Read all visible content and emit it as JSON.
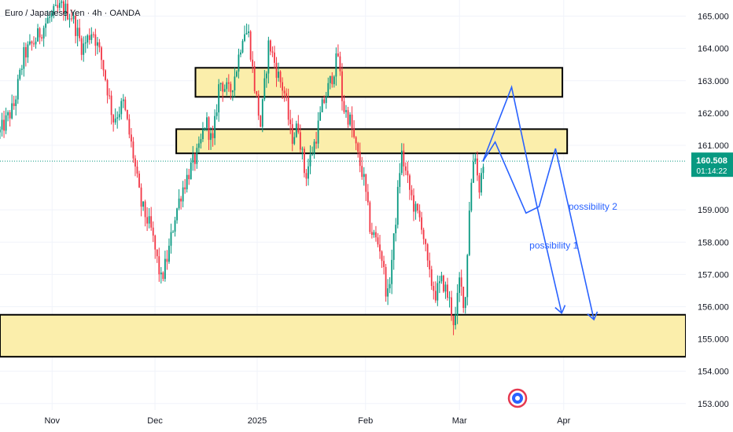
{
  "chart_data": {
    "type": "candlestick",
    "title": "Euro / Japanese Yen · 4h · OANDA",
    "colors": {
      "up": "#089981",
      "down": "#f23645",
      "zone_fill": "#fbeeab",
      "zone_border": "#000000",
      "projection": "#2962ff",
      "price_badge": "#089981",
      "grid": "#f0f3fa",
      "axis_text": "#131722",
      "current_line": "#089981"
    },
    "yaxis": {
      "range": [
        152.8,
        165.5
      ],
      "ticks": [
        "165.000",
        "164.000",
        "163.000",
        "162.000",
        "161.000",
        "159.000",
        "158.000",
        "157.000",
        "156.000",
        "155.000",
        "154.000",
        "153.000"
      ],
      "tick_values": [
        165,
        164,
        163,
        162,
        161,
        159,
        158,
        157,
        156,
        155,
        154,
        153
      ]
    },
    "xaxis": {
      "range": [
        0,
        100
      ],
      "labels": [
        {
          "text": "Nov",
          "x": 7.6
        },
        {
          "text": "Dec",
          "x": 22.6
        },
        {
          "text": "2025",
          "x": 37.5
        },
        {
          "text": "Feb",
          "x": 53.3
        },
        {
          "text": "Mar",
          "x": 67.0
        },
        {
          "text": "Apr",
          "x": 82.2
        }
      ]
    },
    "current_price": {
      "value": 160.508,
      "label": "160.508",
      "countdown": "01:14:22"
    },
    "zones": [
      {
        "x_start": 28.5,
        "x_end": 82.0,
        "y_low": 162.5,
        "y_high": 163.4
      },
      {
        "x_start": 25.7,
        "x_end": 82.7,
        "y_low": 160.75,
        "y_high": 161.5
      },
      {
        "x_start": 0,
        "x_end": 100,
        "y_low": 154.45,
        "y_high": 155.75
      }
    ],
    "path_anchors": [
      {
        "x": 0,
        "y": 161.4
      },
      {
        "x": 2,
        "y": 162.2
      },
      {
        "x": 3.5,
        "y": 163.8
      },
      {
        "x": 5,
        "y": 164.2
      },
      {
        "x": 7,
        "y": 164.9
      },
      {
        "x": 9,
        "y": 165.3
      },
      {
        "x": 10.5,
        "y": 165.0
      },
      {
        "x": 12,
        "y": 164.0
      },
      {
        "x": 13.5,
        "y": 164.6
      },
      {
        "x": 15,
        "y": 163.5
      },
      {
        "x": 16.5,
        "y": 161.8
      },
      {
        "x": 18,
        "y": 162.3
      },
      {
        "x": 19.5,
        "y": 160.6
      },
      {
        "x": 20.5,
        "y": 159.2
      },
      {
        "x": 22,
        "y": 158.4
      },
      {
        "x": 23.5,
        "y": 156.8
      },
      {
        "x": 24.5,
        "y": 157.6
      },
      {
        "x": 25.5,
        "y": 158.8
      },
      {
        "x": 26.5,
        "y": 159.6
      },
      {
        "x": 28,
        "y": 160.4
      },
      {
        "x": 29,
        "y": 160.8
      },
      {
        "x": 30,
        "y": 161.8
      },
      {
        "x": 31,
        "y": 161.0
      },
      {
        "x": 32,
        "y": 163.0
      },
      {
        "x": 33.5,
        "y": 162.6
      },
      {
        "x": 34.5,
        "y": 163.4
      },
      {
        "x": 35.5,
        "y": 164.6
      },
      {
        "x": 36.3,
        "y": 164.4
      },
      {
        "x": 37,
        "y": 163.0
      },
      {
        "x": 38,
        "y": 161.6
      },
      {
        "x": 39.2,
        "y": 164.2
      },
      {
        "x": 40.5,
        "y": 163.2
      },
      {
        "x": 41.5,
        "y": 162.6
      },
      {
        "x": 42.5,
        "y": 161.2
      },
      {
        "x": 43.5,
        "y": 161.6
      },
      {
        "x": 44.5,
        "y": 160.0
      },
      {
        "x": 46,
        "y": 161.2
      },
      {
        "x": 47,
        "y": 162.2
      },
      {
        "x": 48.5,
        "y": 163.2
      },
      {
        "x": 49.3,
        "y": 163.8
      },
      {
        "x": 50,
        "y": 162.2
      },
      {
        "x": 51,
        "y": 161.8
      },
      {
        "x": 52,
        "y": 160.8
      },
      {
        "x": 53,
        "y": 160.0
      },
      {
        "x": 54,
        "y": 158.4
      },
      {
        "x": 55.5,
        "y": 157.8
      },
      {
        "x": 56.5,
        "y": 156.2
      },
      {
        "x": 57.5,
        "y": 158.2
      },
      {
        "x": 58.5,
        "y": 160.8
      },
      {
        "x": 59.5,
        "y": 159.8
      },
      {
        "x": 60.5,
        "y": 159.0
      },
      {
        "x": 61.5,
        "y": 158.6
      },
      {
        "x": 62.5,
        "y": 157.0
      },
      {
        "x": 63.5,
        "y": 156.4
      },
      {
        "x": 64.5,
        "y": 156.8
      },
      {
        "x": 65.5,
        "y": 156.2
      },
      {
        "x": 66.3,
        "y": 155.4
      },
      {
        "x": 67,
        "y": 156.8
      },
      {
        "x": 67.8,
        "y": 156.0
      },
      {
        "x": 68.4,
        "y": 159.0
      },
      {
        "x": 69.2,
        "y": 161.0
      },
      {
        "x": 69.8,
        "y": 159.6
      },
      {
        "x": 70.5,
        "y": 160.5
      }
    ],
    "projections": [
      {
        "name": "possibility 1",
        "points": [
          {
            "x": 70.4,
            "y": 160.5
          },
          {
            "x": 74.6,
            "y": 162.8
          },
          {
            "x": 78.2,
            "y": 159.2
          },
          {
            "x": 81.9,
            "y": 155.8
          }
        ]
      },
      {
        "name": "possibility 2",
        "points": [
          {
            "x": 70.4,
            "y": 160.5
          },
          {
            "x": 72.2,
            "y": 161.1
          },
          {
            "x": 76.7,
            "y": 158.9
          },
          {
            "x": 78.6,
            "y": 159.1
          },
          {
            "x": 81.0,
            "y": 160.9
          },
          {
            "x": 86.6,
            "y": 155.6
          }
        ]
      }
    ],
    "annotations": [
      {
        "text": "possibility 1",
        "x": 77.2,
        "y": 157.8
      },
      {
        "text": "possibility 2",
        "x": 82.9,
        "y": 159.0
      }
    ]
  }
}
